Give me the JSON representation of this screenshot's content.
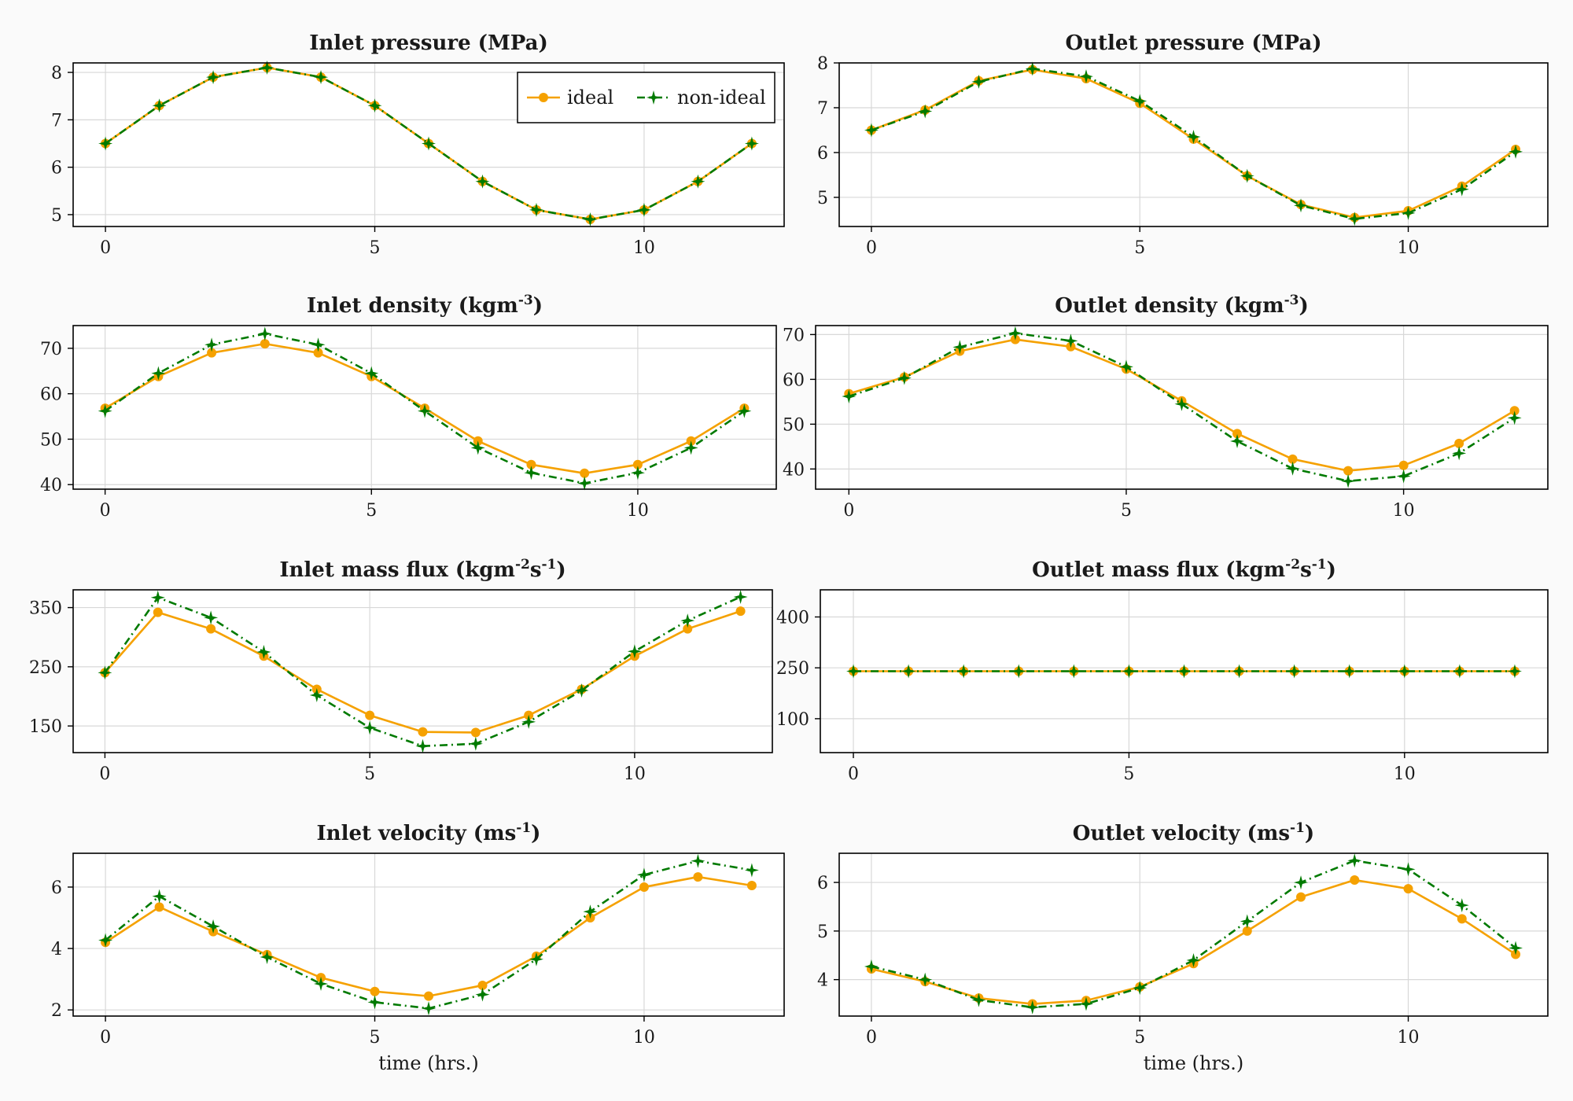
{
  "legend": {
    "ideal_label": "ideal",
    "nonideal_label": "non-ideal",
    "placement": "top-right of first panel"
  },
  "colors": {
    "ideal": "#f5a100",
    "nonideal": "#007a00",
    "grid": "#d8d8d8",
    "background": "#fafafa"
  },
  "chart_data": [
    {
      "type": "line",
      "title": "Inlet pressure (MPa)",
      "title_parts": [
        {
          "t": "Inlet pressure (MPa)"
        }
      ],
      "xlabel": "",
      "ylabel": "",
      "x": [
        0,
        1,
        2,
        3,
        4,
        5,
        6,
        7,
        8,
        9,
        10,
        11,
        12
      ],
      "xlim": [
        -0.6,
        12.6
      ],
      "ylim": [
        4.75,
        8.2
      ],
      "xticks": [
        0,
        5,
        10
      ],
      "yticks": [
        5,
        6,
        7,
        8
      ],
      "grid": true,
      "series": [
        {
          "name": "ideal",
          "values": [
            6.5,
            7.3,
            7.9,
            8.1,
            7.9,
            7.3,
            6.5,
            5.7,
            5.1,
            4.9,
            5.1,
            5.7,
            6.5
          ]
        },
        {
          "name": "non-ideal",
          "values": [
            6.5,
            7.3,
            7.9,
            8.1,
            7.9,
            7.3,
            6.5,
            5.7,
            5.1,
            4.9,
            5.1,
            5.7,
            6.5
          ]
        }
      ]
    },
    {
      "type": "line",
      "title": "Outlet pressure (MPa)",
      "title_parts": [
        {
          "t": "Outlet pressure (MPa)"
        }
      ],
      "xlabel": "",
      "ylabel": "",
      "x": [
        0,
        1,
        2,
        3,
        4,
        5,
        6,
        7,
        8,
        9,
        10,
        11,
        12
      ],
      "xlim": [
        -0.6,
        12.6
      ],
      "ylim": [
        4.35,
        8.0
      ],
      "xticks": [
        0,
        5,
        10
      ],
      "yticks": [
        5,
        6,
        7,
        8
      ],
      "grid": true,
      "series": [
        {
          "name": "ideal",
          "values": [
            6.5,
            6.95,
            7.6,
            7.85,
            7.65,
            7.1,
            6.3,
            5.48,
            4.84,
            4.55,
            4.7,
            5.25,
            6.07
          ]
        },
        {
          "name": "non-ideal",
          "values": [
            6.5,
            6.92,
            7.58,
            7.87,
            7.7,
            7.15,
            6.35,
            5.48,
            4.82,
            4.52,
            4.65,
            5.18,
            6.02
          ]
        }
      ]
    },
    {
      "type": "line",
      "title": "Inlet density (kgm-3)",
      "title_parts": [
        {
          "t": "Inlet density (kgm"
        },
        {
          "t": "-3",
          "sup": true
        },
        {
          "t": ")"
        }
      ],
      "xlabel": "",
      "ylabel": "",
      "x": [
        0,
        1,
        2,
        3,
        4,
        5,
        6,
        7,
        8,
        9,
        10,
        11,
        12
      ],
      "xlim": [
        -0.6,
        12.6
      ],
      "ylim": [
        39,
        75
      ],
      "xticks": [
        0,
        5,
        10
      ],
      "yticks": [
        40,
        50,
        60,
        70
      ],
      "grid": true,
      "series": [
        {
          "name": "ideal",
          "values": [
            56.8,
            63.8,
            69.0,
            71.0,
            69.0,
            63.8,
            56.8,
            49.6,
            44.4,
            42.5,
            44.4,
            49.6,
            56.8
          ]
        },
        {
          "name": "non-ideal",
          "values": [
            56.2,
            64.5,
            70.8,
            73.2,
            70.8,
            64.5,
            56.2,
            48.1,
            42.6,
            40.3,
            42.6,
            48.1,
            56.2
          ]
        }
      ]
    },
    {
      "type": "line",
      "title": "Outlet density (kgm-3)",
      "title_parts": [
        {
          "t": "Outlet density (kgm"
        },
        {
          "t": "-3",
          "sup": true
        },
        {
          "t": ")"
        }
      ],
      "xlabel": "",
      "ylabel": "",
      "x": [
        0,
        1,
        2,
        3,
        4,
        5,
        6,
        7,
        8,
        9,
        10,
        11,
        12
      ],
      "xlim": [
        -0.6,
        12.6
      ],
      "ylim": [
        35.5,
        72
      ],
      "xticks": [
        0,
        5,
        10
      ],
      "yticks": [
        40,
        50,
        60,
        70
      ],
      "grid": true,
      "series": [
        {
          "name": "ideal",
          "values": [
            56.8,
            60.5,
            66.3,
            68.9,
            67.3,
            62.3,
            55.2,
            47.9,
            42.2,
            39.6,
            40.8,
            45.7,
            53.0
          ]
        },
        {
          "name": "non-ideal",
          "values": [
            56.2,
            60.3,
            67.2,
            70.3,
            68.6,
            62.8,
            54.5,
            46.2,
            40.1,
            37.3,
            38.4,
            43.5,
            51.4
          ]
        }
      ]
    },
    {
      "type": "line",
      "title": "Inlet mass flux (kgm-2s-1)",
      "title_parts": [
        {
          "t": "Inlet mass flux (kgm"
        },
        {
          "t": "-2",
          "sup": true
        },
        {
          "t": "s"
        },
        {
          "t": "-1",
          "sup": true
        },
        {
          "t": ")"
        }
      ],
      "xlabel": "",
      "ylabel": "",
      "x": [
        0,
        1,
        2,
        3,
        4,
        5,
        6,
        7,
        8,
        9,
        10,
        11,
        12
      ],
      "xlim": [
        -0.6,
        12.6
      ],
      "ylim": [
        105,
        380
      ],
      "xticks": [
        0,
        5,
        10
      ],
      "yticks": [
        150,
        250,
        350
      ],
      "grid": true,
      "series": [
        {
          "name": "ideal",
          "values": [
            240,
            342,
            314,
            268,
            212,
            168,
            140,
            139,
            168,
            212,
            268,
            314,
            344
          ]
        },
        {
          "name": "non-ideal",
          "values": [
            240,
            367,
            333,
            275,
            202,
            147,
            116,
            120,
            157,
            210,
            276,
            328,
            368
          ]
        }
      ]
    },
    {
      "type": "line",
      "title": "Outlet mass flux (kgm-2s-1)",
      "title_parts": [
        {
          "t": "Outlet mass flux (kgm"
        },
        {
          "t": "-2",
          "sup": true
        },
        {
          "t": "s"
        },
        {
          "t": "-1",
          "sup": true
        },
        {
          "t": ")"
        }
      ],
      "xlabel": "",
      "ylabel": "",
      "x": [
        0,
        1,
        2,
        3,
        4,
        5,
        6,
        7,
        8,
        9,
        10,
        11,
        12
      ],
      "xlim": [
        -0.6,
        12.6
      ],
      "ylim": [
        0,
        480
      ],
      "xticks": [
        0,
        5,
        10
      ],
      "yticks": [
        100,
        250,
        400
      ],
      "grid": true,
      "series": [
        {
          "name": "ideal",
          "values": [
            240,
            240,
            240,
            240,
            240,
            240,
            240,
            240,
            240,
            240,
            240,
            240,
            240
          ]
        },
        {
          "name": "non-ideal",
          "values": [
            240,
            240,
            240,
            240,
            240,
            240,
            240,
            240,
            240,
            240,
            240,
            240,
            240
          ]
        }
      ]
    },
    {
      "type": "line",
      "title": "Inlet velocity (ms-1)",
      "title_parts": [
        {
          "t": "Inlet velocity (ms"
        },
        {
          "t": "-1",
          "sup": true
        },
        {
          "t": ")"
        }
      ],
      "xlabel": "time (hrs.)",
      "ylabel": "",
      "x": [
        0,
        1,
        2,
        3,
        4,
        5,
        6,
        7,
        8,
        9,
        10,
        11,
        12
      ],
      "xlim": [
        -0.6,
        12.6
      ],
      "ylim": [
        1.8,
        7.1
      ],
      "xticks": [
        0,
        5,
        10
      ],
      "yticks": [
        2,
        4,
        6
      ],
      "grid": true,
      "series": [
        {
          "name": "ideal",
          "values": [
            4.2,
            5.35,
            4.55,
            3.8,
            3.05,
            2.6,
            2.45,
            2.8,
            3.75,
            5.0,
            6.0,
            6.33,
            6.05
          ]
        },
        {
          "name": "non-ideal",
          "values": [
            4.27,
            5.7,
            4.72,
            3.72,
            2.85,
            2.25,
            2.05,
            2.5,
            3.65,
            5.2,
            6.4,
            6.85,
            6.55
          ]
        }
      ]
    },
    {
      "type": "line",
      "title": "Outlet velocity (ms-1)",
      "title_parts": [
        {
          "t": "Outlet velocity (ms"
        },
        {
          "t": "-1",
          "sup": true
        },
        {
          "t": ")"
        }
      ],
      "xlabel": "time (hrs.)",
      "ylabel": "",
      "x": [
        0,
        1,
        2,
        3,
        4,
        5,
        6,
        7,
        8,
        9,
        10,
        11,
        12
      ],
      "xlim": [
        -0.6,
        12.6
      ],
      "ylim": [
        3.25,
        6.6
      ],
      "xticks": [
        0,
        5,
        10
      ],
      "yticks": [
        4,
        5,
        6
      ],
      "grid": true,
      "series": [
        {
          "name": "ideal",
          "values": [
            4.22,
            3.96,
            3.62,
            3.5,
            3.57,
            3.85,
            4.33,
            5.0,
            5.7,
            6.05,
            5.87,
            5.25,
            4.52
          ]
        },
        {
          "name": "non-ideal",
          "values": [
            4.27,
            4.0,
            3.58,
            3.43,
            3.5,
            3.83,
            4.4,
            5.2,
            6.0,
            6.45,
            6.27,
            5.53,
            4.65
          ]
        }
      ]
    }
  ]
}
